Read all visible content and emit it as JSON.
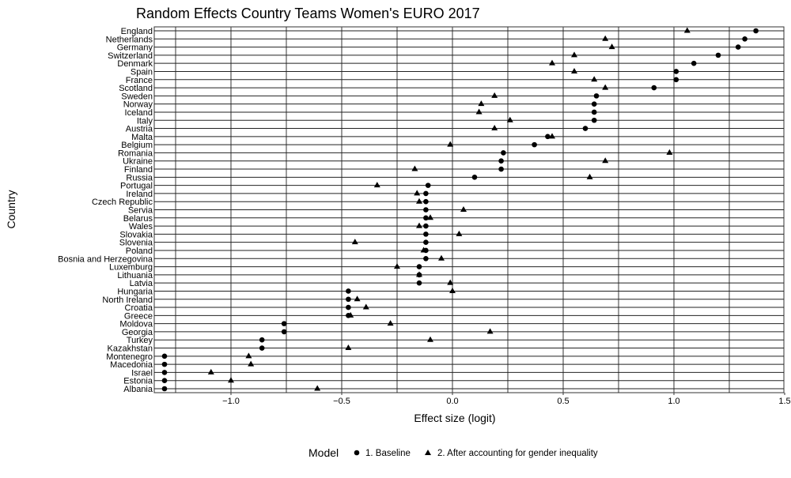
{
  "chart_data": {
    "type": "scatter",
    "title": "Random Effects Country Teams Women's EURO 2017",
    "xlabel": "Effect size (logit)",
    "ylabel": "Country",
    "xlim": [
      -1.35,
      1.5
    ],
    "xticks": [
      -1.0,
      -0.5,
      0.0,
      0.5,
      1.0,
      1.5
    ],
    "xtick_labels": [
      "−1.0",
      "−0.5",
      "0.0",
      "0.5",
      "1.0",
      "1.5"
    ],
    "grid": true,
    "legend": {
      "title": "Model",
      "placement": "bottom"
    },
    "categories": [
      "England",
      "Netherlands",
      "Germany",
      "Switzerland",
      "Denmark",
      "Spain",
      "France",
      "Scotland",
      "Sweden",
      "Norway",
      "Iceland",
      "Italy",
      "Austria",
      "Malta",
      "Belgium",
      "Romania",
      "Ukraine",
      "Finland",
      "Russia",
      "Portugal",
      "Ireland",
      "Czech Republic",
      "Servia",
      "Belarus",
      "Wales",
      "Slovakia",
      "Slovenia",
      "Poland",
      "Bosnia and Herzegovina",
      "Luxemburg",
      "Lithuania",
      "Latvia",
      "Hungaria",
      "North Ireland",
      "Croatia",
      "Greece",
      "Moldova",
      "Georgia",
      "Turkey",
      "Kazakhstan",
      "Montenegro",
      "Macedonia",
      "Israel",
      "Estonia",
      "Albania"
    ],
    "series": [
      {
        "name": "1. Baseline",
        "marker": "circle",
        "values": [
          1.37,
          1.32,
          1.29,
          1.2,
          1.09,
          1.01,
          1.01,
          0.91,
          0.65,
          0.64,
          0.64,
          0.64,
          0.6,
          0.43,
          0.37,
          0.23,
          0.22,
          0.22,
          0.1,
          -0.11,
          -0.12,
          -0.12,
          -0.12,
          -0.12,
          -0.12,
          -0.12,
          -0.12,
          -0.12,
          -0.12,
          -0.15,
          -0.15,
          -0.15,
          -0.47,
          -0.47,
          -0.47,
          -0.47,
          -0.76,
          -0.76,
          -0.86,
          -0.86,
          -1.3,
          -1.3,
          -1.3,
          -1.3,
          -1.3
        ]
      },
      {
        "name": "2. After accounting for gender inequality",
        "marker": "triangle",
        "values": [
          1.06,
          0.69,
          0.72,
          0.55,
          0.45,
          0.55,
          0.64,
          0.69,
          0.19,
          0.13,
          0.12,
          0.26,
          0.19,
          0.45,
          -0.01,
          0.98,
          0.69,
          -0.17,
          0.62,
          -0.34,
          -0.16,
          -0.15,
          0.05,
          -0.1,
          -0.15,
          0.03,
          -0.44,
          -0.13,
          -0.05,
          -0.25,
          -0.15,
          -0.01,
          0.0,
          -0.43,
          -0.39,
          -0.46,
          -0.28,
          0.17,
          -0.1,
          -0.47,
          -0.92,
          -0.91,
          -1.09,
          -1.0,
          -0.61
        ]
      }
    ]
  }
}
